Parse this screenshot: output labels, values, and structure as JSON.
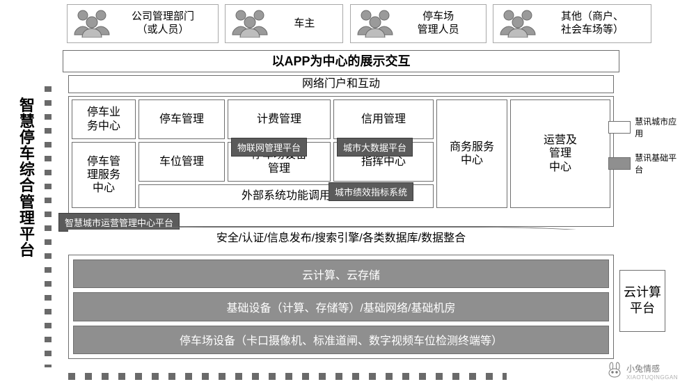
{
  "actors": [
    {
      "label": "公司管理部门\n（或人员）"
    },
    {
      "label": "车主"
    },
    {
      "label": "停车场\n管理人员"
    },
    {
      "label": "其他（商户、\n社会车场等）"
    }
  ],
  "vtitle": "智慧停车综合管理平台",
  "header1": "以APP为中心的展示交互",
  "header2": "网络门户和互动",
  "grid": {
    "r1c1": "停车业\n务中心",
    "r1c2": "停车管理",
    "r1c3": "计费管理",
    "r1c4": "信用管理",
    "r2c1": "停车管\n理服务\n中心",
    "r2c2": "车位管理",
    "r2c3": "停车场设备\n管理",
    "r2c4": "指挥中心",
    "r3w": "外部系统功能调用",
    "right1": "商务服务\n中心",
    "right2": "运营及\n管理\n中心"
  },
  "tags": {
    "t1": "物联网管理平台",
    "t2": "城市大数据平台",
    "t3": "城市绩效指标系统",
    "t4": "智慧城市运营管理中心平台"
  },
  "midline": "安全/认证/信息发布/搜索引擎/各类数据库/数据整合",
  "cloud": [
    "云计算、云存储",
    "基础设备（计算、存储等）/基础网络/基础机房",
    "停车场设备（卡口摄像机、标准道闸、数字视频车位检测终端等）"
  ],
  "cloud_label": "云计算\n平台",
  "legend": {
    "light": "慧讯城市应用",
    "dark": "慧讯基础平台"
  },
  "watermark": {
    "name": "小兔情感",
    "sub": "XIAOTUQINGGAN"
  },
  "colors": {
    "border": "#6e6e6e",
    "darkfill": "#8f8f8f",
    "tagbg": "#5b5b5b"
  }
}
